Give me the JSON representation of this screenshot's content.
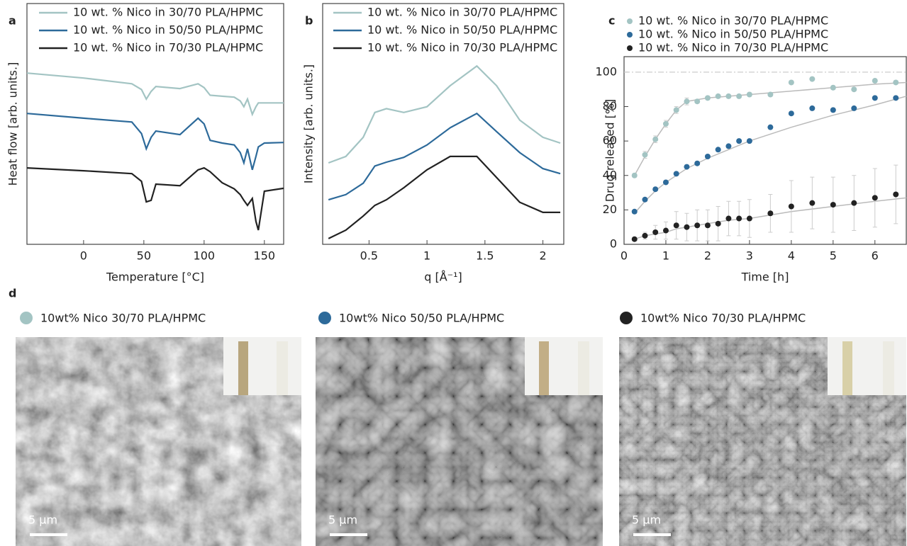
{
  "chart_data": [
    {
      "type": "line",
      "panel": "a",
      "xlabel": "Temperature [°C]",
      "ylabel": "Heat flow [arb. units.]",
      "xlim": [
        -47,
        166
      ],
      "xticks": [
        0,
        50,
        100,
        150
      ],
      "ylim": [
        0,
        12.6
      ],
      "x": [
        -47,
        0,
        40,
        48,
        52,
        56,
        60,
        80,
        95,
        100,
        105,
        115,
        125,
        130,
        133,
        136,
        140,
        143,
        145,
        150,
        166
      ],
      "series": [
        {
          "name": "10 wt. % Nico in 30/70 PLA/HPMC",
          "color": "#a3c4c3",
          "values": [
            8.96,
            8.7,
            8.4,
            8.1,
            7.6,
            8.0,
            8.26,
            8.15,
            8.4,
            8.2,
            7.8,
            7.75,
            7.7,
            7.5,
            7.2,
            7.6,
            6.8,
            7.2,
            7.4,
            7.4,
            7.4
          ]
        },
        {
          "name": "10 wt. % Nico in 50/50 PLA/HPMC",
          "color": "#2d6a9a",
          "values": [
            6.85,
            6.6,
            6.4,
            5.8,
            5.0,
            5.6,
            5.93,
            5.74,
            6.6,
            6.3,
            5.44,
            5.3,
            5.2,
            4.8,
            4.26,
            5.0,
            3.9,
            4.6,
            5.1,
            5.3,
            5.33
          ]
        },
        {
          "name": "10 wt. % Nico in 70/30 PLA/HPMC",
          "color": "#222222",
          "values": [
            4.0,
            3.85,
            3.7,
            3.3,
            2.22,
            2.3,
            3.15,
            3.07,
            3.9,
            4.0,
            3.8,
            3.22,
            2.9,
            2.6,
            2.3,
            2.04,
            2.4,
            1.2,
            0.74,
            2.78,
            2.93
          ]
        }
      ]
    },
    {
      "type": "line",
      "panel": "b",
      "xlabel": "q [Å⁻¹]",
      "ylabel": "Intensity [arb. units.]",
      "xlim": [
        0.1,
        2.18
      ],
      "xticks": [
        0.5,
        1,
        1.5,
        2
      ],
      "ylim": [
        0,
        12.6
      ],
      "x": [
        0.15,
        0.3,
        0.45,
        0.55,
        0.65,
        0.8,
        1.0,
        1.2,
        1.43,
        1.6,
        1.8,
        2.0,
        2.15
      ],
      "series": [
        {
          "name": "10 wt. % Nico in 30/70 PLA/HPMC",
          "color": "#a3c4c3",
          "values": [
            4.26,
            4.6,
            5.6,
            6.9,
            7.1,
            6.9,
            7.2,
            8.3,
            9.33,
            8.3,
            6.5,
            5.6,
            5.3
          ]
        },
        {
          "name": "10 wt. % Nico in 50/50 PLA/HPMC",
          "color": "#2d6a9a",
          "values": [
            2.33,
            2.6,
            3.2,
            4.1,
            4.3,
            4.55,
            5.2,
            6.1,
            6.85,
            5.9,
            4.8,
            3.96,
            3.7
          ]
        },
        {
          "name": "10 wt. % Nico in 70/30 PLA/HPMC",
          "color": "#222222",
          "values": [
            0.3,
            0.74,
            1.48,
            2.04,
            2.33,
            2.96,
            3.9,
            4.6,
            4.6,
            3.5,
            2.2,
            1.67,
            1.67
          ]
        }
      ]
    },
    {
      "type": "scatter",
      "panel": "c",
      "xlabel": "Time [h]",
      "ylabel": "Drug released [%]",
      "xlim": [
        0,
        6.75
      ],
      "xticks": [
        0,
        1,
        2,
        3,
        4,
        5,
        6
      ],
      "ylim": [
        0,
        109
      ],
      "yticks": [
        0,
        20,
        40,
        60,
        80,
        100
      ],
      "hline": 100,
      "fit_color": "#bbbbbb",
      "x": [
        0.25,
        0.5,
        0.75,
        1,
        1.25,
        1.5,
        1.75,
        2,
        2.25,
        2.5,
        2.75,
        3,
        3.5,
        4,
        4.5,
        5,
        5.5,
        6,
        6.5
      ],
      "fit_x": [
        0.25,
        0.5,
        0.75,
        1,
        1.25,
        1.5,
        2,
        2.5,
        3,
        4,
        5,
        6,
        6.75
      ],
      "series": [
        {
          "name": "10 wt. % Nico in 30/70 PLA/HPMC",
          "color": "#a3c4c3",
          "values": [
            40,
            52,
            61,
            70,
            78,
            83,
            83,
            85,
            86,
            86,
            86,
            87,
            87,
            94,
            96,
            91,
            90,
            95,
            94
          ],
          "errors": [
            1,
            2,
            2,
            2,
            2,
            2,
            1,
            1,
            1,
            1,
            1,
            1,
            1,
            1,
            1,
            1,
            1,
            1,
            1
          ],
          "fit": [
            40,
            51,
            61,
            70,
            78,
            83,
            85,
            86,
            87,
            89,
            91,
            93,
            94
          ]
        },
        {
          "name": "10 wt. % Nico in 50/50 PLA/HPMC",
          "color": "#2d6a9a",
          "values": [
            19,
            26,
            32,
            36,
            41,
            45,
            47,
            51,
            55,
            57,
            60,
            60,
            68,
            76,
            79,
            78,
            79,
            85,
            85
          ],
          "errors": [
            1,
            1,
            1,
            1,
            1,
            1,
            1,
            1,
            1,
            1,
            1,
            1,
            1,
            1,
            1,
            1,
            1,
            1,
            1
          ],
          "fit": [
            18,
            25,
            31,
            36,
            40,
            44,
            50,
            55,
            60,
            68,
            75,
            81,
            86
          ]
        },
        {
          "name": "10 wt. % Nico in 70/30 PLA/HPMC",
          "color": "#222222",
          "values": [
            3,
            5,
            7,
            8,
            11,
            10,
            11,
            11,
            12,
            15,
            15,
            15,
            18,
            22,
            24,
            23,
            24,
            27,
            29
          ],
          "errors": [
            1,
            2,
            4,
            5,
            8,
            8,
            9,
            9,
            10,
            10,
            10,
            11,
            11,
            15,
            15,
            16,
            16,
            17,
            17
          ],
          "fit": [
            3,
            5,
            6,
            7,
            9,
            10,
            12,
            14,
            15,
            19,
            22,
            25,
            27
          ]
        }
      ]
    }
  ],
  "micrographs": {
    "panel": "d",
    "items": [
      {
        "caption": "10wt% Nico 30/70 PLA/HPMC",
        "color": "#a3c4c3",
        "scale_bar": "5 µm"
      },
      {
        "caption": "10wt% Nico 50/50 PLA/HPMC",
        "color": "#2d6a9a",
        "scale_bar": "5 µm"
      },
      {
        "caption": "10wt% Nico 70/30 PLA/HPMC",
        "color": "#222222",
        "scale_bar": "5 µm"
      }
    ]
  }
}
